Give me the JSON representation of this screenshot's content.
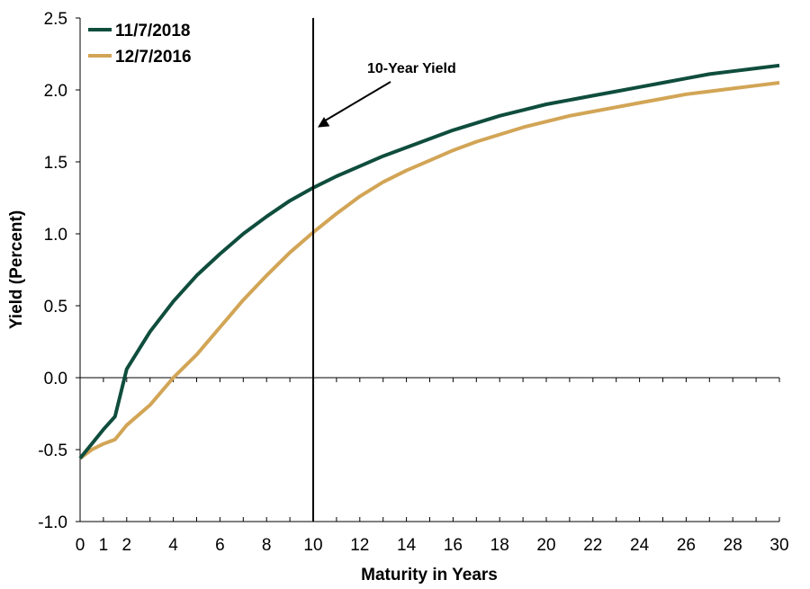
{
  "chart_data": {
    "type": "line",
    "title": "",
    "xlabel": "Maturity in Years",
    "ylabel": "Yield (Percent)",
    "xlim": [
      0,
      30
    ],
    "ylim": [
      -1.0,
      2.5
    ],
    "x_ticks": [
      "0",
      "2",
      "4",
      "6",
      "8",
      "10",
      "12",
      "14",
      "16",
      "18",
      "20",
      "22",
      "24",
      "26",
      "28",
      "30"
    ],
    "x_ticks_first_segment": [
      "0",
      "1",
      "2",
      "4"
    ],
    "y_ticks": [
      "-1.0",
      "-0.5",
      "0.0",
      "0.5",
      "1.0",
      "1.5",
      "2.0",
      "2.5"
    ],
    "grid": false,
    "legend_position": "top-left",
    "vertical_line": {
      "x": 10
    },
    "annotation": {
      "text": "10-Year Yield",
      "target_x": 10,
      "target_y": 1.74
    },
    "series": [
      {
        "name": "11/7/2018",
        "color": "#0f4d3d",
        "x": [
          0,
          0.5,
          1,
          1.5,
          2,
          3,
          4,
          5,
          6,
          7,
          8,
          9,
          10,
          11,
          12,
          13,
          14,
          15,
          16,
          17,
          18,
          19,
          20,
          21,
          22,
          23,
          24,
          25,
          26,
          27,
          28,
          29,
          30
        ],
        "y": [
          -0.56,
          -0.46,
          -0.36,
          -0.27,
          0.06,
          0.32,
          0.53,
          0.71,
          0.86,
          1.0,
          1.12,
          1.23,
          1.32,
          1.4,
          1.47,
          1.54,
          1.6,
          1.66,
          1.72,
          1.77,
          1.82,
          1.86,
          1.9,
          1.93,
          1.96,
          1.99,
          2.02,
          2.05,
          2.08,
          2.11,
          2.13,
          2.15,
          2.17
        ]
      },
      {
        "name": "12/7/2016",
        "color": "#d2a556",
        "x": [
          0,
          0.5,
          1,
          1.5,
          2,
          3,
          4,
          5,
          6,
          7,
          8,
          9,
          10,
          11,
          12,
          13,
          14,
          15,
          16,
          17,
          18,
          19,
          20,
          21,
          22,
          23,
          24,
          25,
          26,
          27,
          28,
          29,
          30
        ],
        "y": [
          -0.56,
          -0.5,
          -0.46,
          -0.43,
          -0.33,
          -0.19,
          0.0,
          0.16,
          0.35,
          0.54,
          0.71,
          0.87,
          1.01,
          1.14,
          1.26,
          1.36,
          1.44,
          1.51,
          1.58,
          1.64,
          1.69,
          1.74,
          1.78,
          1.82,
          1.85,
          1.88,
          1.91,
          1.94,
          1.97,
          1.99,
          2.01,
          2.03,
          2.05
        ]
      }
    ]
  }
}
